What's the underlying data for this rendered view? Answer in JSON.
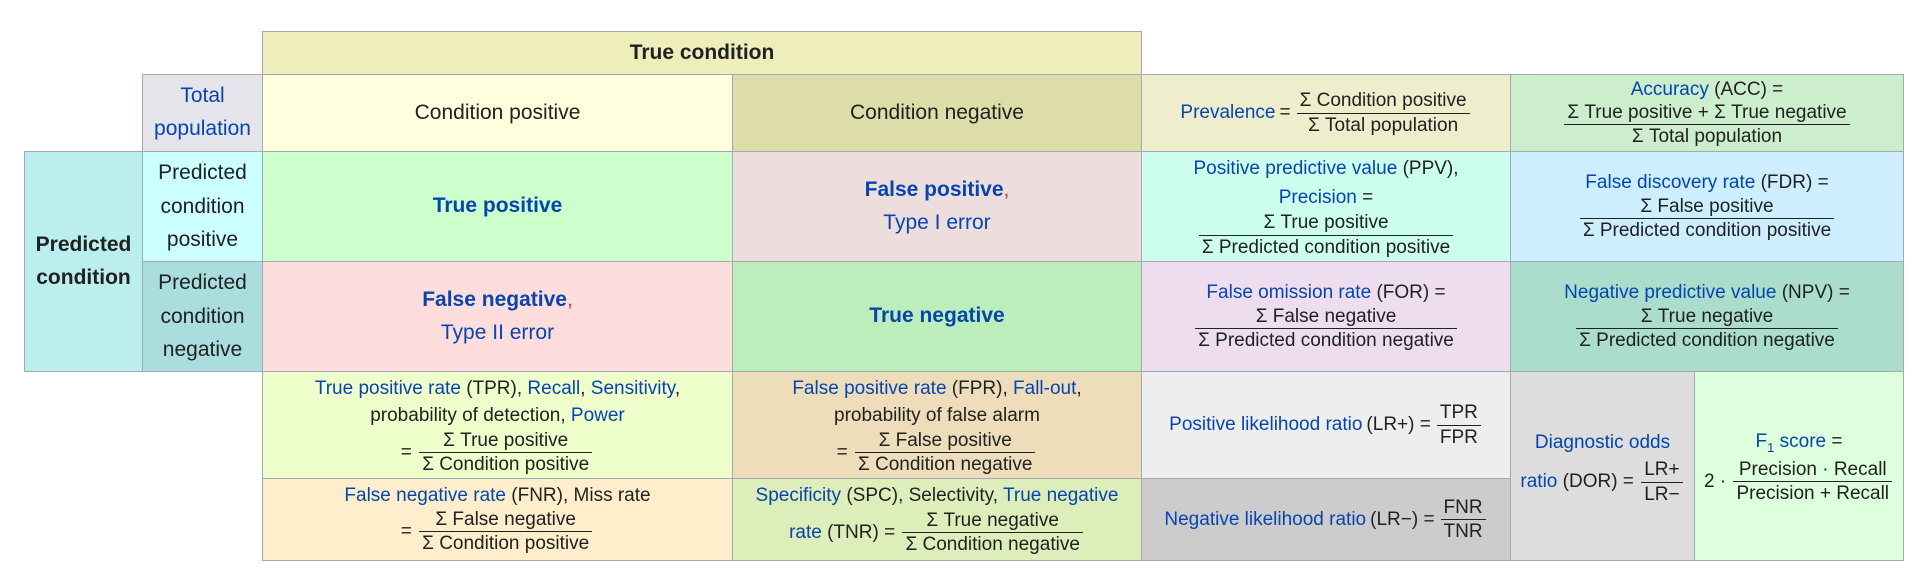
{
  "headers": {
    "true_condition": "True condition",
    "total_population": "Total population",
    "condition_positive": "Condition positive",
    "condition_negative": "Condition negative",
    "predicted_condition": "Predicted condition",
    "predicted_positive": "Predicted condition positive",
    "predicted_negative": "Predicted condition negative"
  },
  "cells": {
    "true_positive": "True positive",
    "false_positive": "False positive",
    "type1_error": "Type I error",
    "false_negative": "False negative",
    "type2_error": "Type II error",
    "true_negative": "True negative",
    "comma": ","
  },
  "prevalence": {
    "label": "Prevalence",
    "eq": "=",
    "num": "Σ Condition positive",
    "den": "Σ Total population"
  },
  "accuracy": {
    "label": "Accuracy",
    "abbr": "(ACC) =",
    "num": "Σ True positive + Σ True negative",
    "den": "Σ Total population"
  },
  "ppv": {
    "label": "Positive predictive value",
    "abbr": "(PPV),",
    "label2": "Precision",
    "eq": "=",
    "num": "Σ True positive",
    "den": "Σ Predicted condition positive"
  },
  "fdr": {
    "label": "False discovery rate",
    "abbr": "(FDR) =",
    "num": "Σ False positive",
    "den": "Σ Predicted condition positive"
  },
  "for": {
    "label": "False omission rate",
    "abbr": "(FOR) =",
    "num": "Σ False negative",
    "den": "Σ Predicted condition negative"
  },
  "npv": {
    "label": "Negative predictive value",
    "abbr": "(NPV) =",
    "num": "Σ True negative",
    "den": "Σ Predicted condition negative"
  },
  "tpr": {
    "label": "True positive rate",
    "abbr": "(TPR),",
    "recall": "Recall",
    "sep": ",",
    "sensitivity": "Sensitivity",
    "sep2": ",",
    "pod": "probability of detection,",
    "power": "Power",
    "eq": "=",
    "num": "Σ True positive",
    "den": "Σ Condition positive"
  },
  "fpr": {
    "label": "False positive rate",
    "abbr": "(FPR),",
    "fallout": "Fall-out",
    "sep": ",",
    "pofa": "probability of false alarm",
    "eq": "=",
    "num": "Σ False positive",
    "den": "Σ Condition negative"
  },
  "fnr": {
    "label": "False negative rate",
    "abbr": "(FNR), Miss rate",
    "eq": "=",
    "num": "Σ False negative",
    "den": "Σ Condition positive"
  },
  "spc": {
    "label": "Specificity",
    "abbr": "(SPC), Selectivity,",
    "tnr_label1": "True negative",
    "tnr_label2": "rate",
    "abbr2": "(TNR) =",
    "num": "Σ True negative",
    "den": "Σ Condition negative"
  },
  "lrp": {
    "label": "Positive likelihood ratio",
    "abbr": "(LR+) =",
    "num": "TPR",
    "den": "FPR"
  },
  "lrn": {
    "label": "Negative likelihood ratio",
    "abbr": "(LR−) =",
    "num": "FNR",
    "den": "TNR"
  },
  "dor": {
    "label1": "Diagnostic odds",
    "label2": "ratio",
    "abbr": "(DOR) =",
    "num": "LR+",
    "den": "LR−"
  },
  "f1": {
    "label": "F",
    "sub": "1",
    "label2": "score",
    "eq": "=",
    "lead": "2 ·",
    "num": "Precision · Recall",
    "den": "Precision + Recall"
  }
}
